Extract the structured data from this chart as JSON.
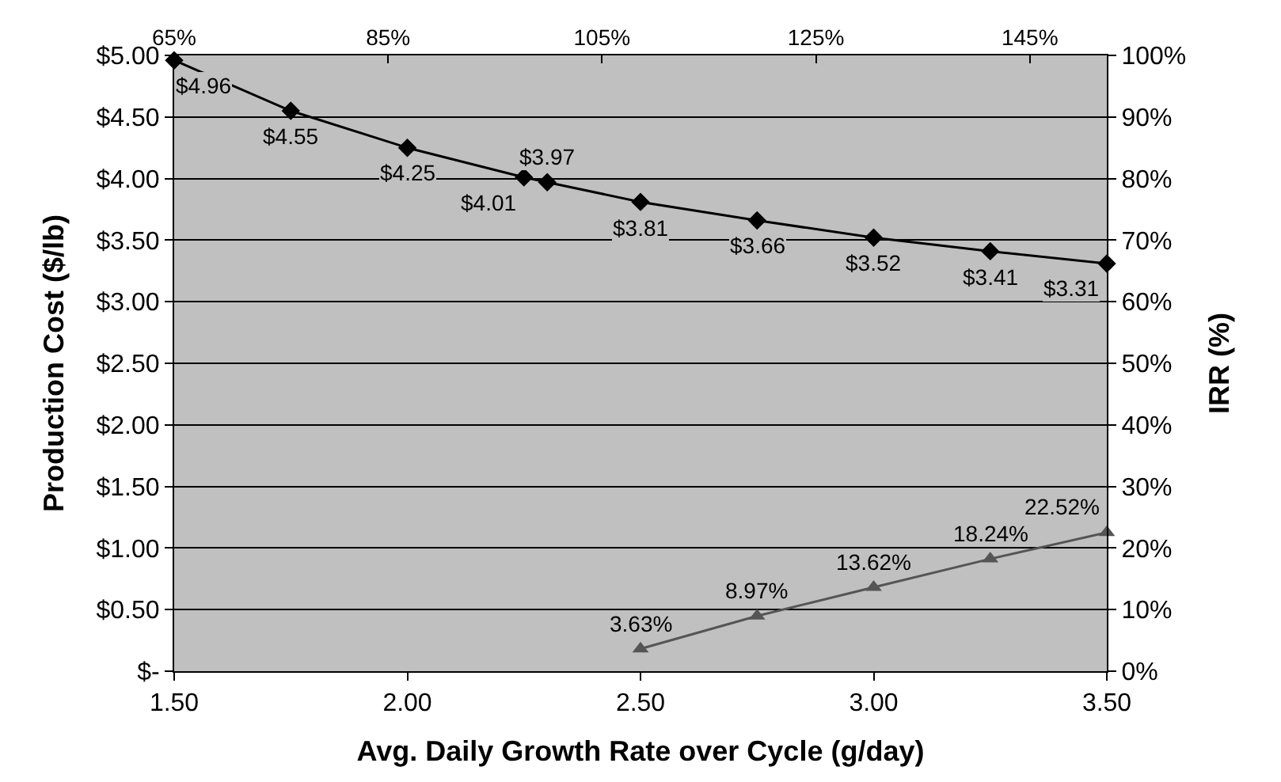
{
  "chart_data": {
    "type": "line",
    "xlabel": "Avg. Daily Growth Rate over Cycle (g/day)",
    "ylabel": "Production Cost ($/lb)",
    "y2label": "IRR (%)",
    "series": [
      {
        "x": [
          1.5,
          1.75,
          2.0,
          2.25,
          2.3,
          2.5,
          2.75,
          3.0,
          3.25,
          3.5
        ],
        "values": [
          4.96,
          4.55,
          4.25,
          4.01,
          3.97,
          3.81,
          3.66,
          3.52,
          3.41,
          3.31
        ],
        "color": "#000000",
        "marker": "diamond",
        "value_labels": [
          "$4.96",
          "$4.55",
          "$4.25",
          "$4.01",
          "$3.97",
          "$3.81",
          "$3.66",
          "$3.52",
          "$3.41",
          "$3.31"
        ]
      },
      {
        "x": [
          2.5,
          2.75,
          3.0,
          3.25,
          3.5
        ],
        "values": [
          3.63,
          8.97,
          13.62,
          18.24,
          22.52
        ],
        "color": "#555555",
        "marker": "triangle",
        "axis": "y2",
        "value_labels": [
          "3.63%",
          "8.97%",
          "13.62%",
          "18.24%",
          "22.52%"
        ]
      }
    ],
    "xlim": [
      1.5,
      3.5
    ],
    "xticks": [
      {
        "value": 1.5,
        "label": "1.50"
      },
      {
        "value": 2.0,
        "label": "2.00"
      },
      {
        "value": 2.5,
        "label": "2.50"
      },
      {
        "value": 3.0,
        "label": "3.00"
      },
      {
        "value": 3.5,
        "label": "3.50"
      }
    ],
    "x2lim": [
      65,
      152.2
    ],
    "x2ticks": [
      {
        "value": 65,
        "label": "65%"
      },
      {
        "value": 85,
        "label": "85%"
      },
      {
        "value": 105,
        "label": "105%"
      },
      {
        "value": 125,
        "label": "125%"
      },
      {
        "value": 145,
        "label": "145%"
      }
    ],
    "ylim": [
      0,
      5
    ],
    "yticks": [
      {
        "value": 0,
        "label": "$-"
      },
      {
        "value": 0.5,
        "label": "$0.50"
      },
      {
        "value": 1,
        "label": "$1.00"
      },
      {
        "value": 1.5,
        "label": "$1.50"
      },
      {
        "value": 2,
        "label": "$2.00"
      },
      {
        "value": 2.5,
        "label": "$2.50"
      },
      {
        "value": 3,
        "label": "$3.00"
      },
      {
        "value": 3.5,
        "label": "$3.50"
      },
      {
        "value": 4,
        "label": "$4.00"
      },
      {
        "value": 4.5,
        "label": "$4.50"
      },
      {
        "value": 5,
        "label": "$5.00"
      }
    ],
    "y2lim": [
      0,
      100
    ],
    "y2ticks": [
      {
        "value": 0,
        "label": "0%"
      },
      {
        "value": 10,
        "label": "10%"
      },
      {
        "value": 20,
        "label": "20%"
      },
      {
        "value": 30,
        "label": "30%"
      },
      {
        "value": 40,
        "label": "40%"
      },
      {
        "value": 50,
        "label": "50%"
      },
      {
        "value": 60,
        "label": "60%"
      },
      {
        "value": 70,
        "label": "70%"
      },
      {
        "value": 80,
        "label": "80%"
      },
      {
        "value": 90,
        "label": "90%"
      },
      {
        "value": 100,
        "label": "100%"
      }
    ],
    "grid": "y",
    "line_style": "solid"
  }
}
